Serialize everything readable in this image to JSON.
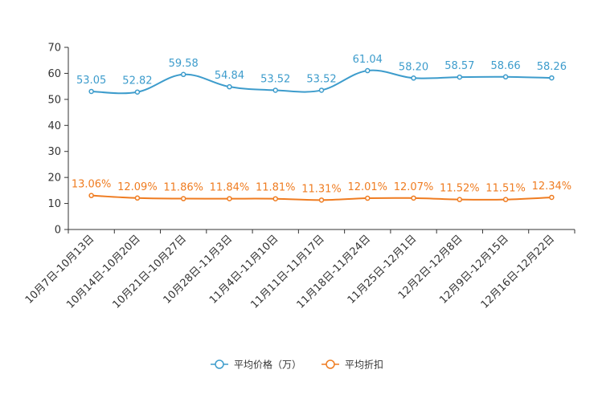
{
  "chart_data": {
    "type": "line",
    "title": "",
    "xlabel": "",
    "ylabel": "",
    "ylim": [
      0,
      70
    ],
    "yticks": [
      0,
      10,
      20,
      30,
      40,
      50,
      60,
      70
    ],
    "grid": false,
    "legend_position": "bottom-center",
    "categories": [
      "10月7日-10月13日",
      "10月14日-10月20日",
      "10月21日-10月27日",
      "10月28日-11月3日",
      "11月4日-11月10日",
      "11月11日-11月17日",
      "11月18日-11月24日",
      "11月25日-12月1日",
      "12月2日-12月8日",
      "12月9日-12月15日",
      "12月16日-12月22日"
    ],
    "series": [
      {
        "name": "平均价格（万）",
        "color": "#3d9ccc",
        "values": [
          53.05,
          52.82,
          59.58,
          54.84,
          53.52,
          53.52,
          61.04,
          58.2,
          58.57,
          58.66,
          58.26
        ],
        "labels": [
          "53.05",
          "52.82",
          "59.58",
          "54.84",
          "53.52",
          "53.52",
          "61.04",
          "58.20",
          "58.57",
          "58.66",
          "58.26"
        ]
      },
      {
        "name": "平均折扣",
        "color": "#ef7c21",
        "values": [
          13.06,
          12.09,
          11.86,
          11.84,
          11.81,
          11.31,
          12.01,
          12.07,
          11.52,
          11.51,
          12.34
        ],
        "labels": [
          "13.06%",
          "12.09%",
          "11.86%",
          "11.84%",
          "11.81%",
          "11.31%",
          "12.01%",
          "12.07%",
          "11.52%",
          "11.51%",
          "12.34%"
        ]
      }
    ]
  }
}
